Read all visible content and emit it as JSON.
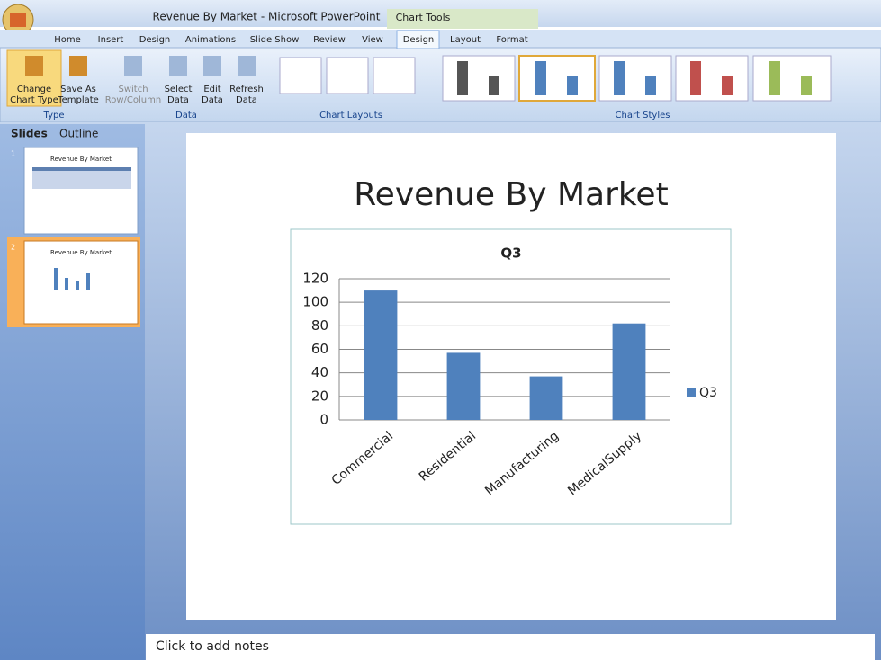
{
  "window": {
    "title": "Revenue By Market - Microsoft PowerPoint",
    "context_tab": "Chart Tools"
  },
  "ribbon": {
    "tabs": [
      "Home",
      "Insert",
      "Design",
      "Animations",
      "Slide Show",
      "Review",
      "View",
      "Design",
      "Layout",
      "Format"
    ],
    "groups": [
      {
        "name": "Type",
        "buttons": [
          [
            "Change",
            "Chart Type"
          ],
          [
            "Save As",
            "Template"
          ]
        ]
      },
      {
        "name": "Data",
        "buttons": [
          [
            "Switch",
            "Row/Column"
          ],
          [
            "Select",
            "Data"
          ],
          [
            "Edit",
            "Data"
          ],
          [
            "Refresh",
            "Data"
          ]
        ]
      },
      {
        "name": "Chart Layouts",
        "buttons": []
      },
      {
        "name": "Chart Styles",
        "buttons": []
      }
    ]
  },
  "panel": {
    "tabs": [
      "Slides",
      "Outline"
    ],
    "slides": [
      {
        "number": "1",
        "title": "Revenue By Market"
      },
      {
        "number": "2",
        "title": "Revenue By Market"
      }
    ]
  },
  "slide": {
    "title": "Revenue By Market"
  },
  "chart_data": {
    "type": "bar",
    "title": "Q3",
    "categories": [
      "Commercial",
      "Residential",
      "Manufacturing",
      "MedicalSupply"
    ],
    "series": [
      {
        "name": "Q3",
        "color": "#4f81bd",
        "values": [
          110,
          57,
          37,
          82
        ]
      }
    ],
    "ylim": [
      0,
      120
    ],
    "yticks": [
      0,
      20,
      40,
      60,
      80,
      100,
      120
    ],
    "grid": true,
    "legend": "right"
  },
  "notes": {
    "placeholder": "Click to add notes"
  }
}
